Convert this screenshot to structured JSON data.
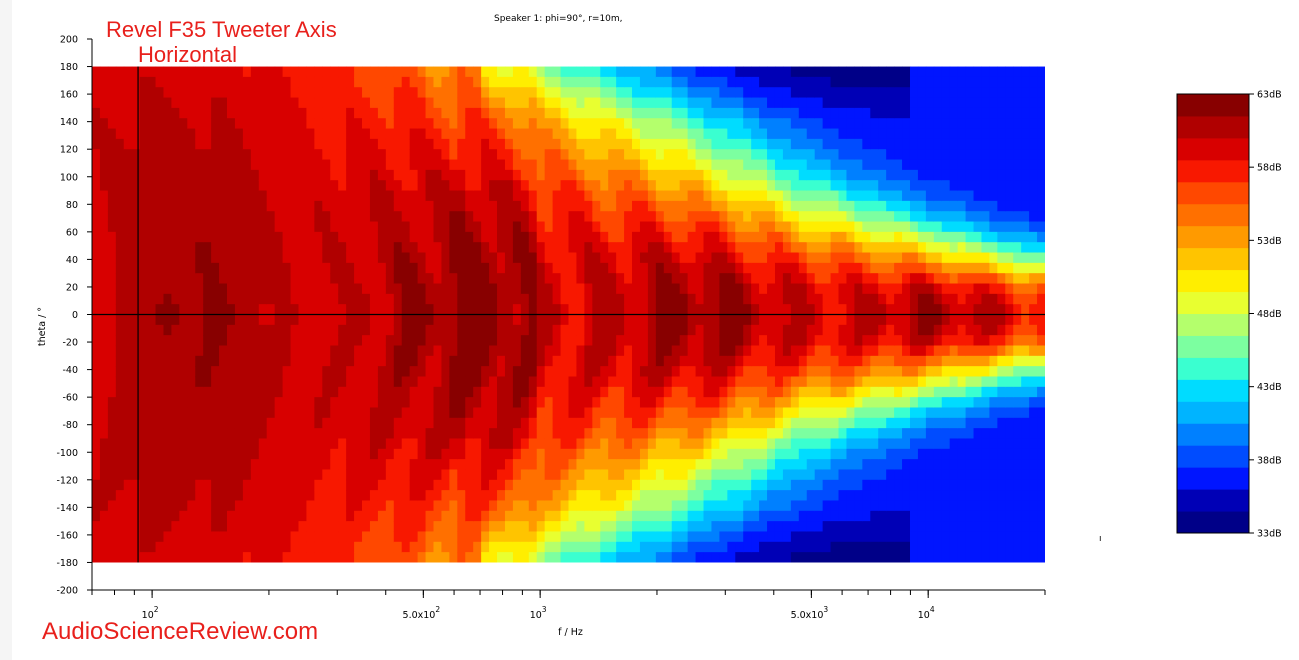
{
  "title_line1": "Revel F35 Tweeter Axis",
  "title_line2": "Horizontal",
  "watermark": "AudioScienceReview.com",
  "stray_mark": "ı",
  "chart_data": {
    "type": "heatmap",
    "title": "Speaker 1: phi=90°, r=10m,",
    "xlabel": "f / Hz",
    "ylabel": "theta / °",
    "x_scale": "log",
    "xlim": [
      70,
      20000
    ],
    "ylim": [
      -200,
      200
    ],
    "x_ticks": [
      {
        "value": 100,
        "label": "10",
        "sup": "2"
      },
      {
        "value": 500,
        "label": "5.0x10",
        "sup": "2"
      },
      {
        "value": 1000,
        "label": "10",
        "sup": "3"
      },
      {
        "value": 5000,
        "label": "5.0x10",
        "sup": "3"
      },
      {
        "value": 10000,
        "label": "10",
        "sup": "4"
      }
    ],
    "y_ticks": [
      200,
      180,
      160,
      140,
      120,
      100,
      80,
      60,
      40,
      20,
      0,
      -20,
      -40,
      -60,
      -80,
      -100,
      -120,
      -140,
      -160,
      -180,
      -200
    ],
    "data_x_range": [
      70,
      20000
    ],
    "data_y_range": [
      -180,
      180
    ],
    "reference_lines": {
      "vertical_hz": 92,
      "horizontal_deg": 0
    },
    "colorbar": {
      "unit": "dB",
      "min": 33,
      "max": 63,
      "labels": [
        "63dB",
        "58dB",
        "53dB",
        "48dB",
        "43dB",
        "38dB",
        "33dB"
      ],
      "colors": [
        "#000088",
        "#0000b6",
        "#0015ff",
        "#004cff",
        "#0080ff",
        "#00b4ff",
        "#00dcff",
        "#3affd0",
        "#7cffa0",
        "#b4ff6c",
        "#e8ff30",
        "#ffee00",
        "#ffc400",
        "#ff9a00",
        "#ff7000",
        "#ff4800",
        "#f81800",
        "#d80000",
        "#b00000",
        "#880000"
      ]
    },
    "response_model": {
      "low_plateau_db": 60.5,
      "beam_ref_hz": 1400,
      "beam_width_deg_at_ref": 185,
      "beam_exponent": 0.55,
      "off_axis_floor_db": 36
    }
  }
}
